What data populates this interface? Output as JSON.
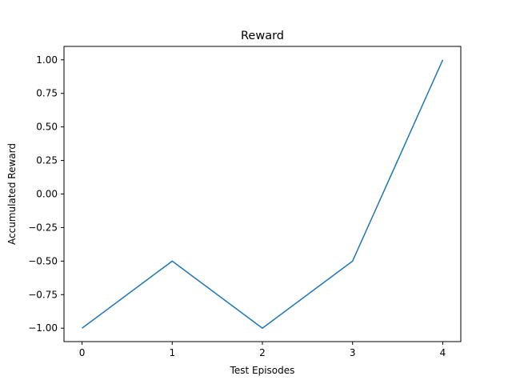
{
  "chart_data": {
    "type": "line",
    "title": "Reward",
    "xlabel": "Test Episodes",
    "ylabel": "Accumulated Reward",
    "x": [
      0,
      1,
      2,
      3,
      4
    ],
    "series": [
      {
        "values": [
          -1.0,
          -0.5,
          -1.0,
          -0.5,
          1.0
        ],
        "color": "#1f77b4"
      }
    ],
    "xticks": [
      "0",
      "1",
      "2",
      "3",
      "4"
    ],
    "yticks": [
      "−1.00",
      "−0.75",
      "−0.50",
      "−0.25",
      "0.00",
      "0.25",
      "0.50",
      "0.75",
      "1.00"
    ],
    "xlim": [
      -0.2,
      4.2
    ],
    "ylim": [
      -1.1,
      1.1
    ],
    "grid": false,
    "legend": "none"
  }
}
